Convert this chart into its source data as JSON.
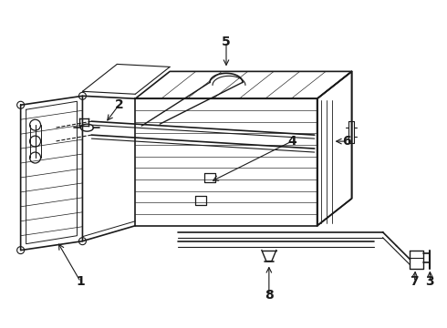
{
  "background_color": "#ffffff",
  "line_color": "#1a1a1a",
  "label_color": "#000000",
  "fig_width": 4.9,
  "fig_height": 3.6,
  "dpi": 100,
  "label_fontsize": 10,
  "label_fontweight": "bold"
}
